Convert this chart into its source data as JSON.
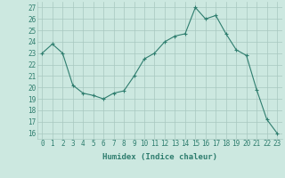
{
  "x": [
    0,
    1,
    2,
    3,
    4,
    5,
    6,
    7,
    8,
    9,
    10,
    11,
    12,
    13,
    14,
    15,
    16,
    17,
    18,
    19,
    20,
    21,
    22,
    23
  ],
  "y": [
    23.0,
    23.8,
    23.0,
    20.2,
    19.5,
    19.3,
    19.0,
    19.5,
    19.7,
    21.0,
    22.5,
    23.0,
    24.0,
    24.5,
    24.7,
    27.0,
    26.0,
    26.3,
    24.7,
    23.3,
    22.8,
    19.8,
    17.2,
    16.0
  ],
  "line_color": "#2e7d6e",
  "marker": "+",
  "bg_color": "#cce8e0",
  "grid_color": "#a8c8bf",
  "tick_color": "#2e7d6e",
  "xlabel": "Humidex (Indice chaleur)",
  "ylim": [
    15.5,
    27.5
  ],
  "xlim": [
    -0.5,
    23.5
  ],
  "yticks": [
    16,
    17,
    18,
    19,
    20,
    21,
    22,
    23,
    24,
    25,
    26,
    27
  ],
  "xticks": [
    0,
    1,
    2,
    3,
    4,
    5,
    6,
    7,
    8,
    9,
    10,
    11,
    12,
    13,
    14,
    15,
    16,
    17,
    18,
    19,
    20,
    21,
    22,
    23
  ],
  "label_fontsize": 6.5,
  "tick_fontsize": 5.5
}
